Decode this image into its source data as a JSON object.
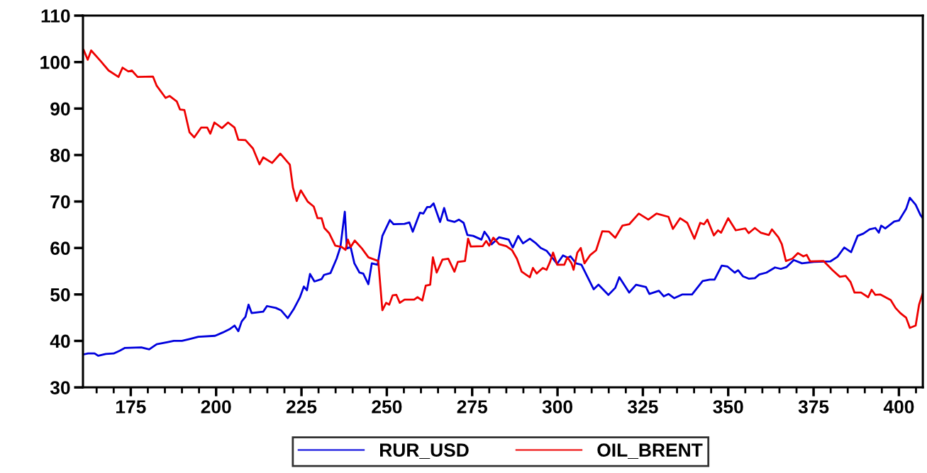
{
  "chart_data": {
    "type": "line",
    "xlim": [
      161,
      407
    ],
    "ylim": [
      30,
      110
    ],
    "xticks": [
      {
        "value": 165,
        "label": null
      },
      {
        "value": 170,
        "label": null
      },
      175,
      {
        "value": 180,
        "label": null
      },
      {
        "value": 185,
        "label": null
      },
      {
        "value": 190,
        "label": null
      },
      {
        "value": 195,
        "label": null
      },
      200,
      {
        "value": 205,
        "label": null
      },
      {
        "value": 210,
        "label": null
      },
      {
        "value": 215,
        "label": null
      },
      {
        "value": 220,
        "label": null
      },
      225,
      {
        "value": 230,
        "label": null
      },
      {
        "value": 235,
        "label": null
      },
      {
        "value": 240,
        "label": null
      },
      {
        "value": 245,
        "label": null
      },
      250,
      {
        "value": 255,
        "label": null
      },
      {
        "value": 260,
        "label": null
      },
      {
        "value": 265,
        "label": null
      },
      {
        "value": 270,
        "label": null
      },
      275,
      {
        "value": 280,
        "label": null
      },
      {
        "value": 285,
        "label": null
      },
      {
        "value": 290,
        "label": null
      },
      {
        "value": 295,
        "label": null
      },
      300,
      {
        "value": 305,
        "label": null
      },
      {
        "value": 310,
        "label": null
      },
      {
        "value": 315,
        "label": null
      },
      {
        "value": 320,
        "label": null
      },
      325,
      {
        "value": 330,
        "label": null
      },
      {
        "value": 335,
        "label": null
      },
      {
        "value": 340,
        "label": null
      },
      {
        "value": 345,
        "label": null
      },
      350,
      {
        "value": 355,
        "label": null
      },
      {
        "value": 360,
        "label": null
      },
      {
        "value": 365,
        "label": null
      },
      {
        "value": 370,
        "label": null
      },
      375,
      {
        "value": 380,
        "label": null
      },
      {
        "value": 385,
        "label": null
      },
      {
        "value": 390,
        "label": null
      },
      {
        "value": 395,
        "label": null
      },
      400,
      {
        "value": 405,
        "label": null
      }
    ],
    "yticks": [
      30,
      40,
      50,
      60,
      70,
      80,
      90,
      100,
      110
    ],
    "grid": false,
    "legend": "bottom",
    "marker": "none",
    "line_style": "solid",
    "series": [
      {
        "name": "RUR_USD",
        "color": "#0000dd",
        "x": [
          161.2,
          162.5,
          164.4,
          165.5,
          167.7,
          170.0,
          171.8,
          173.3,
          178.1,
          180.4,
          182.6,
          185.6,
          187.6,
          190.0,
          192.2,
          194.8,
          199.7,
          201.9,
          204.1,
          205.4,
          206.5,
          207.5,
          208.6,
          209.5,
          210.4,
          213.8,
          214.9,
          217.5,
          219.0,
          221.0,
          222.7,
          224.5,
          225.7,
          226.6,
          227.5,
          228.8,
          230.9,
          231.6,
          233.5,
          235.3,
          236.4,
          237.7,
          238.3,
          239.4,
          240.5,
          242.0,
          243.1,
          244.6,
          245.6,
          247.3,
          248.7,
          250.9,
          252.0,
          255.2,
          256.6,
          257.6,
          259.7,
          260.7,
          261.8,
          262.7,
          263.7,
          265.6,
          266.8,
          267.8,
          269.8,
          271.1,
          272.5,
          273.6,
          275.3,
          277.7,
          278.6,
          279.8,
          280.7,
          282.9,
          285.7,
          286.9,
          288.5,
          289.9,
          291.9,
          293.7,
          295.1,
          296.8,
          299.9,
          301.6,
          303.0,
          303.8,
          305.4,
          307.0,
          310.6,
          312.0,
          314.9,
          316.9,
          318.1,
          321.0,
          323.0,
          325.9,
          326.9,
          329.7,
          331.1,
          332.5,
          334.2,
          336.6,
          339.4,
          342.5,
          344.6,
          346.0,
          348.1,
          349.8,
          351.9,
          352.9,
          354.3,
          356.0,
          357.8,
          359.1,
          361.2,
          363.7,
          365.4,
          367.1,
          369.2,
          371.6,
          375.1,
          379.9,
          382.0,
          384.0,
          386.0,
          387.9,
          389.6,
          391.4,
          393.1,
          394.1,
          394.8,
          396.0,
          398.6,
          400.0,
          402.1,
          403.2,
          404.9,
          406.3,
          406.9
        ],
        "values": [
          37.1,
          37.3,
          37.3,
          36.8,
          37.2,
          37.3,
          37.9,
          38.5,
          38.6,
          38.2,
          39.3,
          39.7,
          40.0,
          40.0,
          40.4,
          40.9,
          41.1,
          41.8,
          42.6,
          43.3,
          42.1,
          44.2,
          45.2,
          47.8,
          46.0,
          46.3,
          47.5,
          47.1,
          46.6,
          44.9,
          46.8,
          49.3,
          51.7,
          50.9,
          54.4,
          52.8,
          53.3,
          54.2,
          54.6,
          57.7,
          60.2,
          67.8,
          59.9,
          60.2,
          56.7,
          54.7,
          54.5,
          52.2,
          56.7,
          56.4,
          62.6,
          66.0,
          65.1,
          65.2,
          65.5,
          63.5,
          67.6,
          67.4,
          68.8,
          68.8,
          69.6,
          65.6,
          68.6,
          66.0,
          65.6,
          66.1,
          65.4,
          62.8,
          62.6,
          61.8,
          63.5,
          62.3,
          60.8,
          62.3,
          61.8,
          60.1,
          62.6,
          61.0,
          62.0,
          61.0,
          60.0,
          59.4,
          56.6,
          58.4,
          57.9,
          58.2,
          56.7,
          56.4,
          51.1,
          52.1,
          49.9,
          51.4,
          53.7,
          50.4,
          52.1,
          51.6,
          50.1,
          50.8,
          49.6,
          50.1,
          49.2,
          50.0,
          50.0,
          52.9,
          53.2,
          53.2,
          56.2,
          56.0,
          54.7,
          55.2,
          53.9,
          53.4,
          53.5,
          54.3,
          54.7,
          55.8,
          55.5,
          55.9,
          57.4,
          56.7,
          57.0,
          57.1,
          58.1,
          60.1,
          59.1,
          62.6,
          63.1,
          64.0,
          64.3,
          63.3,
          64.8,
          64.2,
          65.7,
          65.9,
          68.4,
          70.8,
          69.3,
          67.1,
          66.5
        ]
      },
      {
        "name": "OIL_BRENT",
        "color": "#ee0000",
        "x": [
          161.2,
          162.4,
          163.4,
          166.2,
          168.5,
          171.4,
          172.6,
          174.3,
          175.3,
          177.0,
          181.5,
          182.6,
          185.2,
          186.4,
          188.5,
          189.4,
          190.7,
          192.2,
          193.6,
          195.6,
          197.4,
          198.3,
          199.5,
          201.7,
          203.5,
          205.4,
          206.5,
          208.6,
          210.8,
          212.7,
          213.8,
          216.4,
          218.8,
          221.6,
          222.5,
          223.6,
          224.8,
          226.8,
          228.6,
          229.7,
          230.9,
          231.7,
          233.1,
          234.9,
          236.8,
          237.9,
          238.6,
          239.4,
          240.6,
          242.7,
          244.6,
          247.5,
          248.7,
          249.8,
          250.7,
          251.7,
          252.8,
          253.8,
          255.2,
          258.0,
          259.0,
          260.4,
          261.4,
          262.7,
          263.5,
          264.6,
          266.3,
          268.0,
          269.8,
          270.8,
          272.9,
          273.8,
          274.6,
          278.1,
          279.1,
          280.0,
          281.2,
          282.9,
          285.0,
          286.7,
          288.1,
          289.5,
          291.9,
          292.8,
          293.9,
          295.7,
          296.8,
          297.8,
          298.7,
          299.9,
          302.0,
          302.9,
          304.1,
          304.7,
          305.8,
          306.8,
          307.9,
          309.6,
          311.3,
          313.1,
          315.1,
          316.9,
          319.0,
          321.0,
          323.8,
          326.6,
          329.0,
          332.5,
          333.8,
          335.9,
          338.0,
          340.1,
          341.8,
          342.9,
          343.9,
          345.8,
          347.0,
          347.9,
          350.0,
          352.2,
          355.0,
          356.0,
          357.8,
          359.5,
          361.9,
          362.8,
          364.7,
          365.7,
          366.9,
          368.8,
          370.4,
          372.0,
          373.0,
          374.0,
          377.9,
          380.6,
          382.7,
          384.4,
          385.8,
          387.0,
          388.9,
          391.0,
          392.0,
          393.1,
          394.5,
          397.6,
          399.0,
          400.4,
          402.1,
          403.2,
          404.9,
          405.9,
          406.9
        ],
        "values": [
          102.6,
          100.5,
          102.5,
          100.2,
          98.2,
          96.8,
          98.8,
          98.0,
          98.2,
          96.8,
          96.9,
          94.9,
          92.3,
          92.7,
          91.5,
          89.8,
          89.7,
          84.9,
          83.8,
          85.9,
          85.9,
          84.6,
          87.0,
          85.8,
          87.0,
          85.9,
          83.3,
          83.2,
          81.4,
          78.0,
          79.5,
          78.3,
          80.3,
          77.9,
          73.0,
          70.1,
          72.4,
          70.0,
          68.9,
          66.4,
          66.4,
          64.3,
          63.2,
          60.5,
          60.2,
          59.6,
          61.8,
          60.2,
          61.6,
          59.9,
          58.0,
          57.2,
          46.6,
          48.2,
          47.8,
          49.8,
          49.9,
          48.2,
          48.9,
          48.9,
          49.4,
          48.7,
          51.9,
          52.1,
          58.0,
          54.7,
          57.5,
          57.7,
          54.9,
          57.0,
          57.2,
          62.0,
          60.3,
          60.4,
          61.5,
          60.5,
          62.2,
          60.8,
          60.4,
          59.5,
          57.7,
          54.9,
          53.7,
          55.7,
          54.5,
          55.7,
          55.3,
          57.0,
          59.0,
          56.4,
          56.4,
          58.0,
          56.7,
          55.3,
          59.0,
          60.0,
          56.7,
          58.5,
          59.5,
          63.6,
          63.5,
          62.2,
          64.8,
          65.1,
          67.4,
          66.1,
          67.4,
          66.7,
          64.1,
          66.4,
          65.4,
          62.0,
          65.4,
          65.1,
          66.1,
          62.7,
          63.8,
          63.3,
          66.4,
          63.8,
          64.2,
          63.2,
          64.3,
          63.3,
          62.8,
          64.0,
          62.3,
          60.8,
          57.2,
          57.7,
          58.9,
          58.2,
          58.5,
          57.1,
          57.2,
          55.2,
          53.8,
          54.0,
          52.7,
          50.4,
          50.4,
          49.4,
          51.0,
          49.9,
          50.0,
          48.8,
          47.1,
          46.0,
          45.0,
          42.8,
          43.3,
          47.8,
          50.1
        ]
      }
    ]
  }
}
